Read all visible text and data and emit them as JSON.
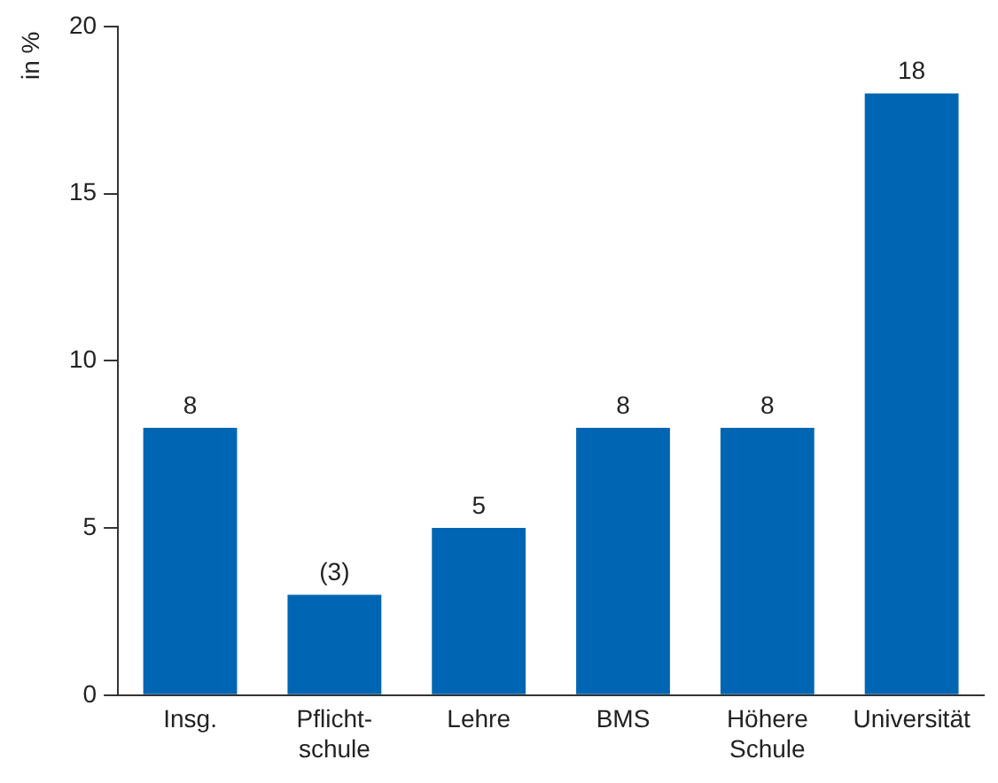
{
  "chart_data": {
    "type": "bar",
    "ylabel": "in %",
    "categories": [
      "Insg.",
      "Pflicht-\nschule",
      "Lehre",
      "BMS",
      "Höhere\nSchule",
      "Universität"
    ],
    "values": [
      8,
      3,
      5,
      8,
      8,
      18
    ],
    "value_labels": [
      "8",
      "(3)",
      "5",
      "8",
      "8",
      "18"
    ],
    "color": "#0066b3",
    "ylim": [
      0,
      20
    ],
    "yticks": [
      0,
      5,
      10,
      15,
      20
    ],
    "grid": false,
    "legend": false
  }
}
